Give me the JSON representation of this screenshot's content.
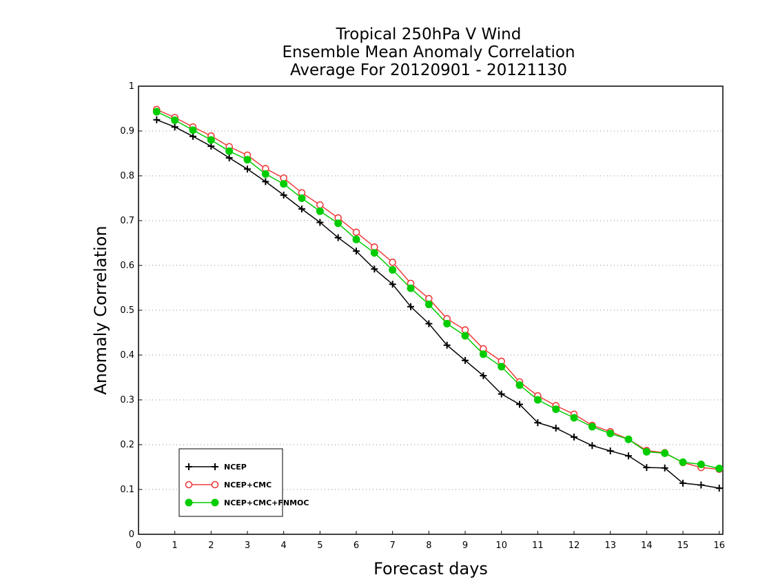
{
  "chart_data": {
    "type": "line",
    "title_lines": [
      "Tropical 250hPa V Wind",
      "Ensemble Mean Anomaly Correlation",
      "Average For 20120901 - 20121130"
    ],
    "xlabel": "Forecast days",
    "ylabel": "Anomaly Correlation",
    "xlim": [
      0,
      16.1
    ],
    "ylim": [
      0,
      1
    ],
    "xticks": [
      0,
      1,
      2,
      3,
      4,
      5,
      6,
      7,
      8,
      9,
      10,
      11,
      12,
      13,
      14,
      15,
      16
    ],
    "yticks": [
      0,
      0.1,
      0.2,
      0.3,
      0.4,
      0.5,
      0.6,
      0.7,
      0.8,
      0.9,
      1
    ],
    "ytick_labels": [
      "0",
      "0.1",
      "0.2",
      "0.3",
      "0.4",
      "0.5",
      "0.6",
      "0.7",
      "0.8",
      "0.9",
      "1"
    ],
    "grid": "dotted horizontal",
    "legend_position": "bottom-left",
    "x": [
      0.5,
      1,
      1.5,
      2,
      2.5,
      3,
      3.5,
      4,
      4.5,
      5,
      5.5,
      6,
      6.5,
      7,
      7.5,
      8,
      8.5,
      9,
      9.5,
      10,
      10.5,
      11,
      11.5,
      12,
      12.5,
      13,
      13.5,
      14,
      14.5,
      15,
      15.5,
      16
    ],
    "series": [
      {
        "name": "NCEP",
        "color": "#000000",
        "marker": "plus",
        "values": [
          0.925,
          0.909,
          0.888,
          0.866,
          0.84,
          0.815,
          0.787,
          0.757,
          0.726,
          0.696,
          0.662,
          0.632,
          0.592,
          0.558,
          0.508,
          0.47,
          0.422,
          0.388,
          0.354,
          0.313,
          0.29,
          0.249,
          0.237,
          0.217,
          0.198,
          0.186,
          0.175,
          0.149,
          0.148,
          0.114,
          0.11,
          0.103
        ]
      },
      {
        "name": "NCEP+CMC",
        "color": "#ee3b3b",
        "marker": "open-circle",
        "values": [
          0.948,
          0.93,
          0.909,
          0.889,
          0.865,
          0.846,
          0.816,
          0.795,
          0.762,
          0.735,
          0.706,
          0.674,
          0.641,
          0.607,
          0.56,
          0.526,
          0.481,
          0.456,
          0.414,
          0.386,
          0.34,
          0.309,
          0.287,
          0.268,
          0.243,
          0.229,
          0.212,
          0.187,
          0.182,
          0.16,
          0.149,
          0.145
        ]
      },
      {
        "name": "NCEP+CMC+FNMOC",
        "color": "#00cc00",
        "marker": "filled-circle",
        "values": [
          0.943,
          0.924,
          0.902,
          0.88,
          0.855,
          0.836,
          0.804,
          0.782,
          0.75,
          0.721,
          0.694,
          0.658,
          0.628,
          0.59,
          0.549,
          0.513,
          0.47,
          0.443,
          0.402,
          0.374,
          0.333,
          0.3,
          0.279,
          0.26,
          0.24,
          0.225,
          0.212,
          0.184,
          0.181,
          0.161,
          0.156,
          0.147
        ]
      }
    ]
  }
}
